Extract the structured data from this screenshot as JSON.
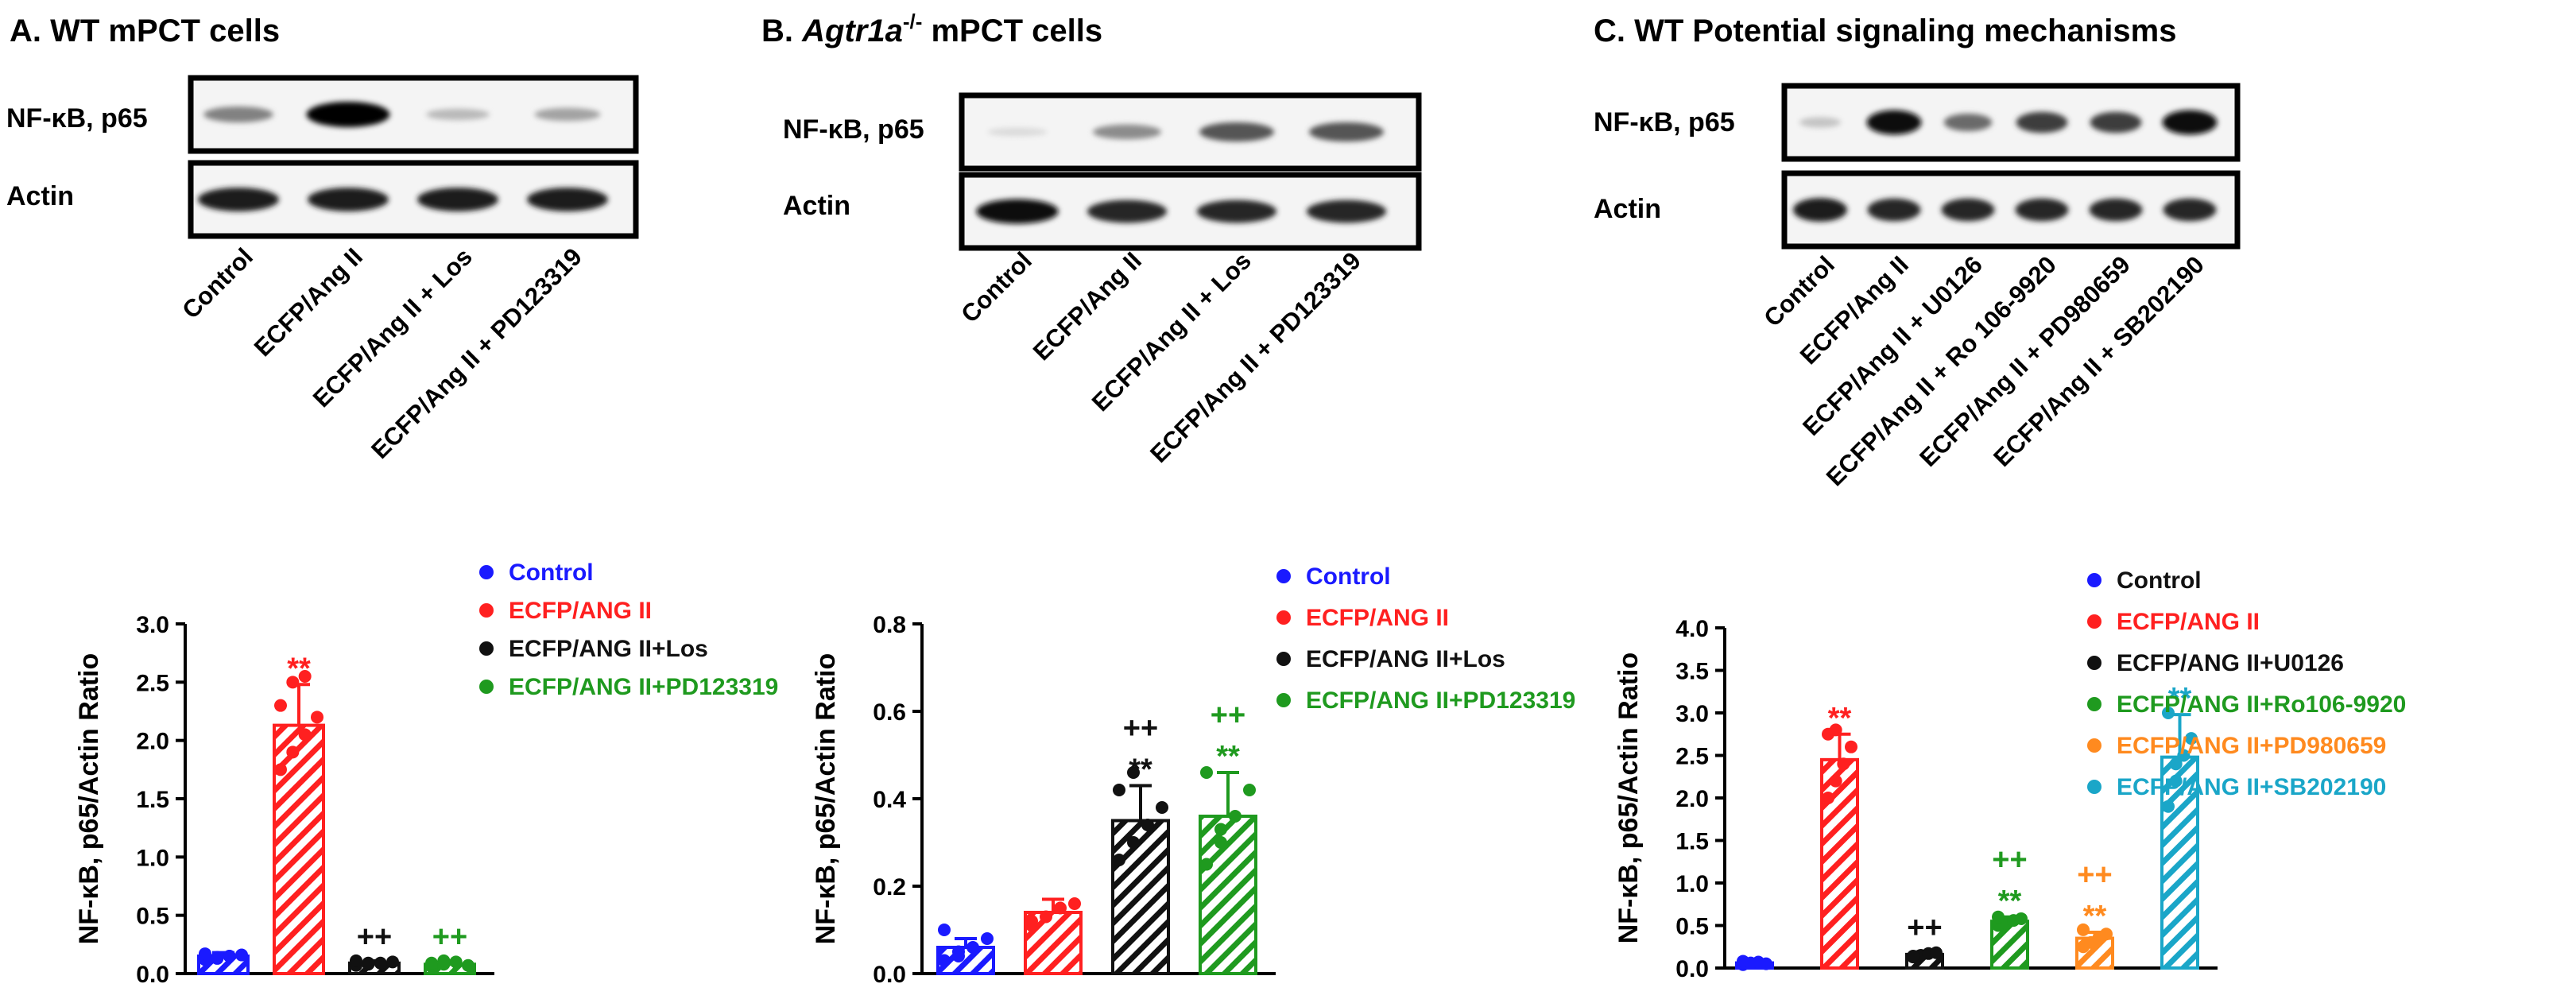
{
  "colors": {
    "control": "#1a1aff",
    "ang": "#ff2020",
    "black": "#111111",
    "green": "#1f9a1f",
    "orange": "#ff8a1f",
    "cyan": "#1aa6c8"
  },
  "blots": [
    {
      "title_prefix": "A. WT mPCT cells",
      "title_italic": "",
      "title_sup": "",
      "title_suffix": "",
      "row_labels": [
        "NF-κB, p65",
        "Actin"
      ],
      "lane_labels": [
        "Control",
        "ECFP/Ang II",
        "ECFP/Ang II + Los",
        "ECFP/Ang II + PD123319"
      ],
      "band_intensity": {
        "p65": [
          0.45,
          1.0,
          0.2,
          0.3
        ],
        "actin": [
          0.9,
          0.9,
          0.9,
          0.9
        ]
      }
    },
    {
      "title_prefix": "B. ",
      "title_italic": "Agtr1a",
      "title_sup": "-/-",
      "title_suffix": " mPCT cells",
      "row_labels": [
        "NF-κB, p65",
        "Actin"
      ],
      "lane_labels": [
        "Control",
        "ECFP/Ang II",
        "ECFP/Ang II + Los",
        "ECFP/Ang II + PD123319"
      ],
      "band_intensity": {
        "p65": [
          0.05,
          0.4,
          0.65,
          0.65
        ],
        "actin": [
          0.95,
          0.85,
          0.85,
          0.85
        ]
      }
    },
    {
      "title_prefix": "C. WT Potential signaling mechanisms",
      "title_italic": "",
      "title_sup": "",
      "title_suffix": "",
      "row_labels": [
        "NF-κB, p65",
        "Actin"
      ],
      "lane_labels": [
        "Control",
        "ECFP/Ang II",
        "ECFP/Ang II + U0126",
        "ECFP/Ang II + Ro 106-9920",
        "ECFP/Ang II + PD980659",
        "ECFP/Ang II + SB202190"
      ],
      "band_intensity": {
        "p65": [
          0.15,
          0.95,
          0.55,
          0.75,
          0.75,
          0.95
        ],
        "actin": [
          0.9,
          0.85,
          0.85,
          0.85,
          0.85,
          0.85
        ]
      }
    }
  ],
  "chart_data": [
    {
      "type": "bar",
      "ylabel": "NF-κB, p65/Actin Ratio",
      "ylim": [
        0,
        3.0
      ],
      "yticks": [
        "0.0",
        "0.5",
        "1.0",
        "1.5",
        "2.0",
        "2.5",
        "3.0"
      ],
      "yticks_values": [
        0,
        0.5,
        1.0,
        1.5,
        2.0,
        2.5,
        3.0
      ],
      "legend_placement": "top-right",
      "series": [
        {
          "name": "Control",
          "color_key": "control",
          "value": 0.15,
          "error": 0.03,
          "points": [
            0.12,
            0.14,
            0.15,
            0.16,
            0.17,
            0.13,
            0.15
          ],
          "stars": "",
          "plus": ""
        },
        {
          "name": "ECFP/ANG II",
          "color_key": "ang",
          "value": 2.13,
          "error": 0.35,
          "points": [
            1.75,
            1.9,
            2.05,
            2.2,
            2.3,
            2.5,
            2.55
          ],
          "stars": "**",
          "plus": ""
        },
        {
          "name": "ECFP/ANG II+Los",
          "color_key": "black",
          "value": 0.09,
          "error": 0.02,
          "points": [
            0.07,
            0.08,
            0.09,
            0.1,
            0.11,
            0.09
          ],
          "stars": "",
          "plus": "++"
        },
        {
          "name": "ECFP/ANG II+PD123319",
          "color_key": "green",
          "value": 0.08,
          "error": 0.03,
          "points": [
            0.06,
            0.08,
            0.1,
            0.07,
            0.09,
            0.11
          ],
          "stars": "",
          "plus": "++"
        }
      ]
    },
    {
      "type": "bar",
      "ylabel": "NF-κB, p65/Actin Ratio",
      "ylim": [
        0,
        0.8
      ],
      "yticks": [
        "0.0",
        "0.2",
        "0.4",
        "0.6",
        "0.8"
      ],
      "yticks_values": [
        0,
        0.2,
        0.4,
        0.6,
        0.8
      ],
      "legend_placement": "top-right",
      "series": [
        {
          "name": "Control",
          "color_key": "control",
          "value": 0.06,
          "error": 0.02,
          "points": [
            0.03,
            0.05,
            0.06,
            0.08,
            0.1,
            0.04
          ],
          "stars": "",
          "plus": ""
        },
        {
          "name": "ECFP/ANG II",
          "color_key": "ang",
          "value": 0.14,
          "error": 0.03,
          "points": [
            0.11,
            0.13,
            0.15,
            0.16,
            0.12
          ],
          "stars": "",
          "plus": ""
        },
        {
          "name": "ECFP/ANG II+Los",
          "color_key": "black",
          "value": 0.35,
          "error": 0.08,
          "points": [
            0.26,
            0.3,
            0.34,
            0.38,
            0.42,
            0.46
          ],
          "stars": "**",
          "plus": "++"
        },
        {
          "name": "ECFP/ANG II+PD123319",
          "color_key": "green",
          "value": 0.36,
          "error": 0.1,
          "points": [
            0.25,
            0.3,
            0.36,
            0.42,
            0.46,
            0.33
          ],
          "stars": "**",
          "plus": "++"
        }
      ]
    },
    {
      "type": "bar",
      "ylabel": "NF-κB, p65/Actin Ratio",
      "ylim": [
        0,
        4.0
      ],
      "yticks": [
        "0.0",
        "0.5",
        "1.0",
        "1.5",
        "2.0",
        "2.5",
        "3.0",
        "3.5",
        "4.0"
      ],
      "yticks_values": [
        0,
        0.5,
        1.0,
        1.5,
        2.0,
        2.5,
        3.0,
        3.5,
        4.0
      ],
      "legend_placement": "top-right",
      "series": [
        {
          "name": "Control",
          "color_key": "control",
          "value": 0.06,
          "error": 0.02,
          "points": [
            0.04,
            0.06,
            0.07,
            0.05,
            0.08
          ],
          "stars": "",
          "plus": ""
        },
        {
          "name": "ECFP/ANG II",
          "color_key": "ang",
          "value": 2.45,
          "error": 0.3,
          "points": [
            2.0,
            2.2,
            2.4,
            2.6,
            2.75,
            2.8
          ],
          "stars": "**",
          "plus": ""
        },
        {
          "name": "ECFP/ANG II+U0126",
          "color_key": "black",
          "value": 0.16,
          "error": 0.03,
          "points": [
            0.13,
            0.15,
            0.17,
            0.18,
            0.14
          ],
          "stars": "",
          "plus": "++"
        },
        {
          "name": "ECFP/ANG II+Ro106-9920",
          "color_key": "green",
          "value": 0.55,
          "error": 0.05,
          "points": [
            0.5,
            0.53,
            0.56,
            0.58,
            0.6
          ],
          "stars": "**",
          "plus": "++"
        },
        {
          "name": "ECFP/ANG II+PD980659",
          "color_key": "orange",
          "value": 0.35,
          "error": 0.07,
          "points": [
            0.25,
            0.3,
            0.35,
            0.4,
            0.45
          ],
          "stars": "**",
          "plus": "++"
        },
        {
          "name": "ECFP/ANG II+SB202190",
          "color_key": "cyan",
          "value": 2.48,
          "error": 0.5,
          "points": [
            1.9,
            2.2,
            2.5,
            2.7,
            3.0,
            2.4
          ],
          "stars": "**",
          "plus": ""
        }
      ]
    }
  ]
}
